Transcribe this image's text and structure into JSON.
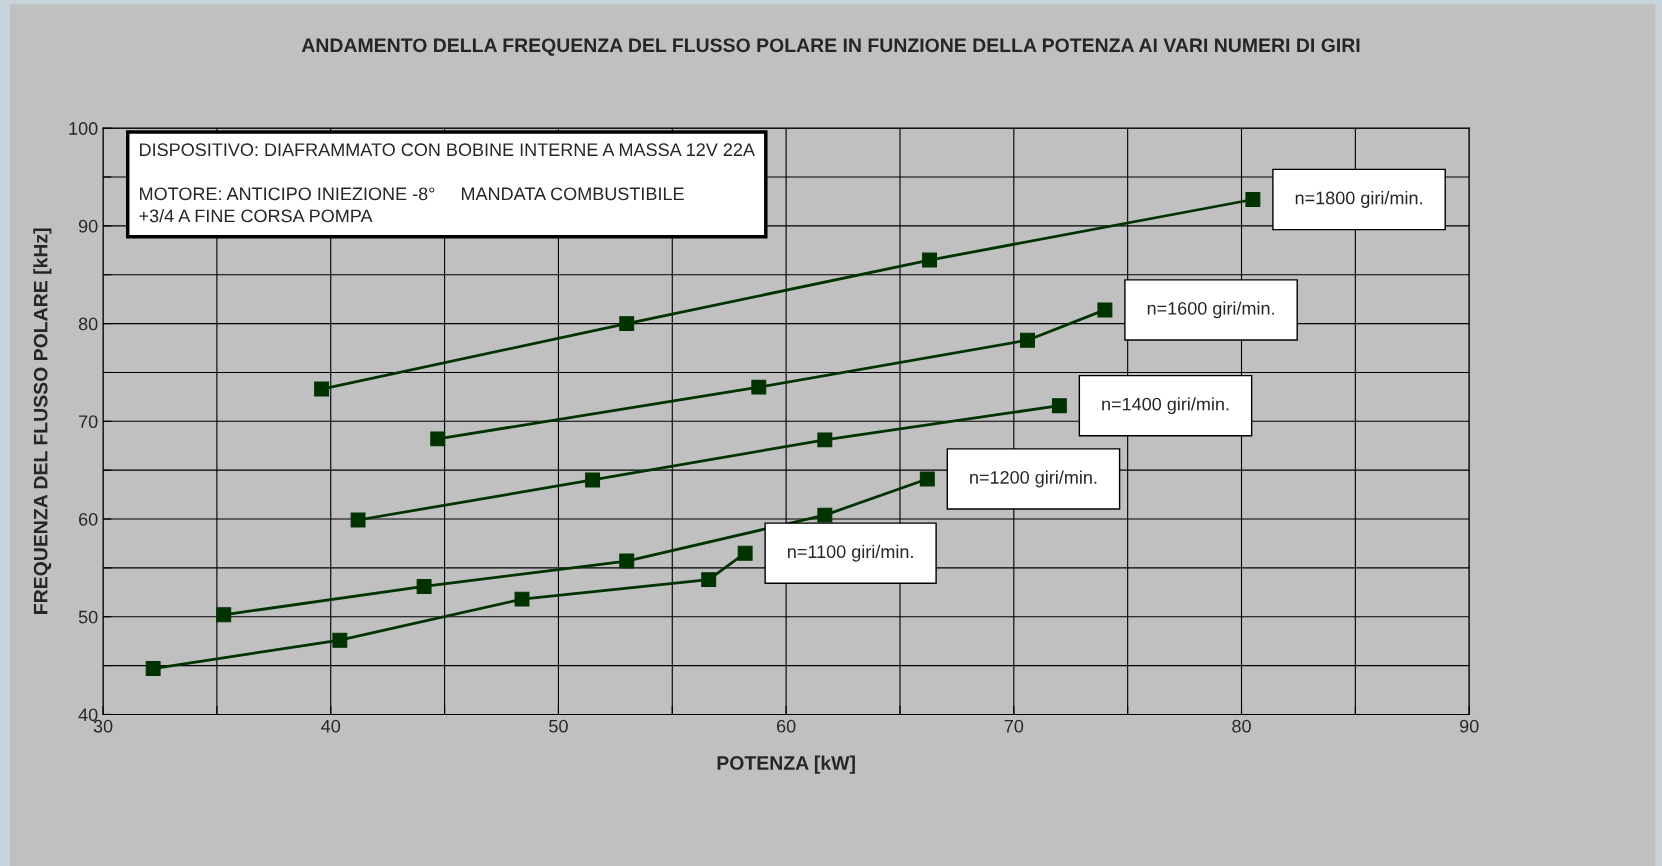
{
  "chart_data": {
    "type": "line",
    "title": "ANDAMENTO DELLA FREQUENZA DEL FLUSSO POLARE IN FUNZIONE DELLA POTENZA AI VARI NUMERI DI GIRI",
    "xlabel": "POTENZA [kW]",
    "ylabel": "FREQUENZA DEL FLUSSO POLARE [kHz]",
    "annotations": [
      "DISPOSITIVO: DIAFRAMMATO CON BOBINE INTERNE A MASSA 12V 22A",
      "MOTORE: ANTICIPO INIEZIONE -8°     MANDATA COMBUSTIBILE\n+3/4 A FINE CORSA POMPA"
    ],
    "series": [
      {
        "name": "n=1800 giri/min.",
        "color": "#003300",
        "x": [
          39.6,
          53.0,
          66.3,
          80.5
        ],
        "values": [
          73.3,
          80.0,
          86.5,
          92.7
        ]
      },
      {
        "name": "n=1600 giri/min.",
        "color": "#003300",
        "x": [
          44.7,
          58.8,
          70.6,
          74.0
        ],
        "values": [
          68.2,
          73.5,
          78.3,
          81.4
        ]
      },
      {
        "name": "n=1400 giri/min.",
        "color": "#003300",
        "x": [
          41.2,
          51.5,
          61.7,
          72.0
        ],
        "values": [
          59.9,
          64.0,
          68.1,
          71.6
        ]
      },
      {
        "name": "n=1200 giri/min.",
        "color": "#003300",
        "x": [
          35.3,
          44.1,
          53.0,
          61.7,
          66.2
        ],
        "values": [
          50.2,
          53.1,
          55.7,
          60.4,
          64.1
        ]
      },
      {
        "name": "n=1100 giri/min.",
        "color": "#003300",
        "x": [
          32.2,
          40.4,
          48.4,
          56.6,
          58.2
        ],
        "values": [
          44.7,
          47.6,
          51.8,
          53.8,
          56.5
        ]
      }
    ],
    "xlim": [
      30,
      90
    ],
    "ylim": [
      40,
      100
    ],
    "xticks": [
      30,
      {
        "value": 35,
        "label": null
      },
      40,
      {
        "value": 45,
        "label": null
      },
      50,
      {
        "value": 55,
        "label": null
      },
      60,
      {
        "value": 65,
        "label": null
      },
      70,
      {
        "value": 75,
        "label": null
      },
      80,
      {
        "value": 85,
        "label": null
      },
      90
    ],
    "yticks": [
      40,
      {
        "value": 45,
        "label": null
      },
      50,
      {
        "value": 55,
        "label": null
      },
      60,
      {
        "value": 65,
        "label": null
      },
      70,
      {
        "value": 75,
        "label": null
      },
      80,
      {
        "value": 85,
        "label": null
      },
      90,
      {
        "value": 95,
        "label": null
      },
      100
    ],
    "grid": true,
    "marker": "square",
    "line_style": "solid",
    "legend": false
  }
}
